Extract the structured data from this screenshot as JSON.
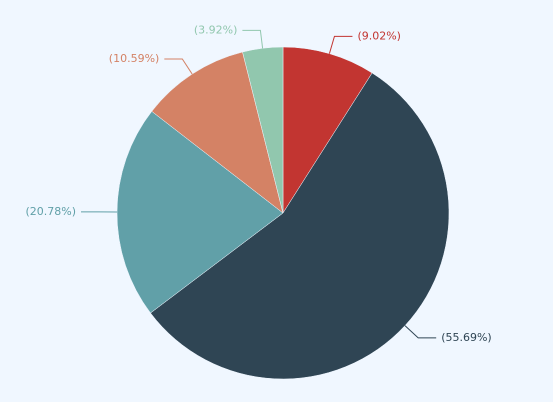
{
  "chart_data": {
    "type": "pie",
    "values": [
      9.02,
      55.69,
      20.78,
      10.59,
      3.92
    ],
    "value_labels": [
      "(9.02%)",
      "(55.69%)",
      "(20.78%)",
      "(10.59%)",
      "(3.92%)"
    ],
    "colors": [
      "#c23531",
      "#2f4554",
      "#61a0a8",
      "#d48265",
      "#91c7ae"
    ]
  }
}
